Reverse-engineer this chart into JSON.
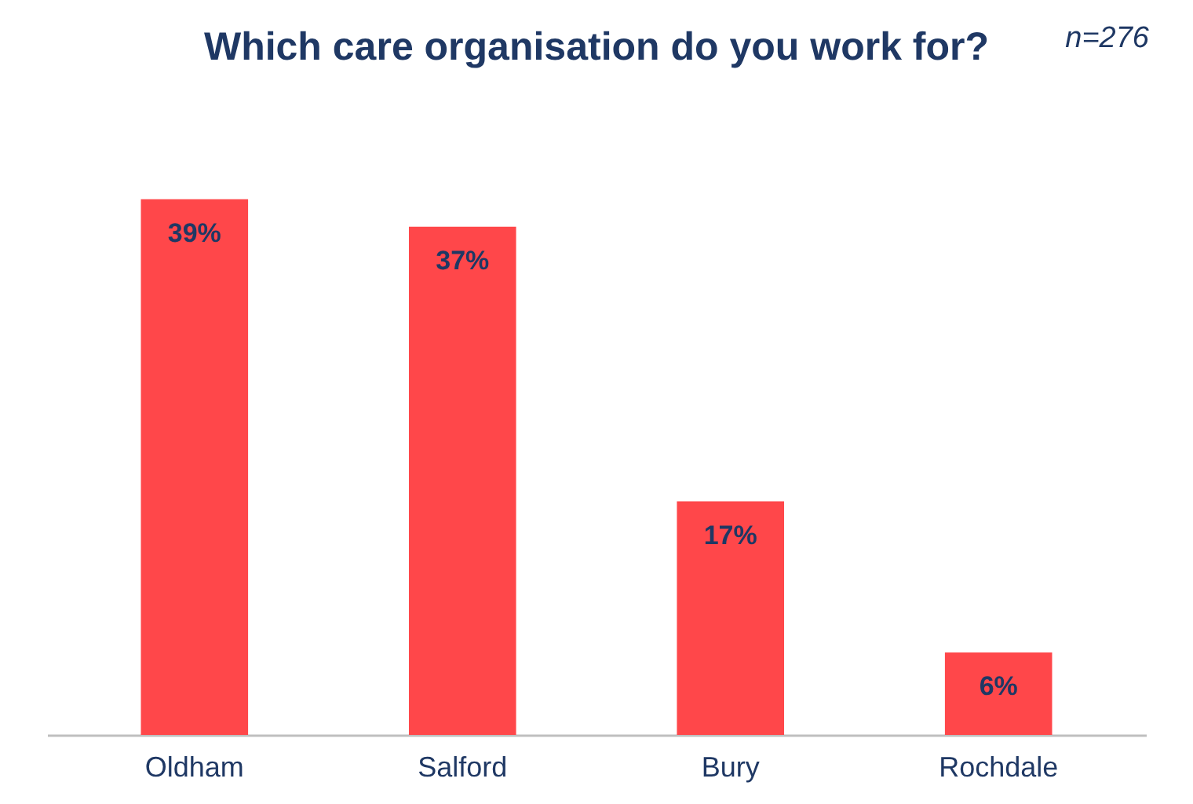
{
  "chart_data": {
    "type": "bar",
    "title": "Which care organisation do you work for?",
    "categories": [
      "Oldham",
      "Salford",
      "Bury",
      "Rochdale"
    ],
    "values": [
      39,
      37,
      17,
      6
    ],
    "value_labels": [
      "39%",
      "37%",
      "17%",
      "6%"
    ],
    "color": "#ff474a",
    "annotations": [
      "n=276"
    ]
  }
}
